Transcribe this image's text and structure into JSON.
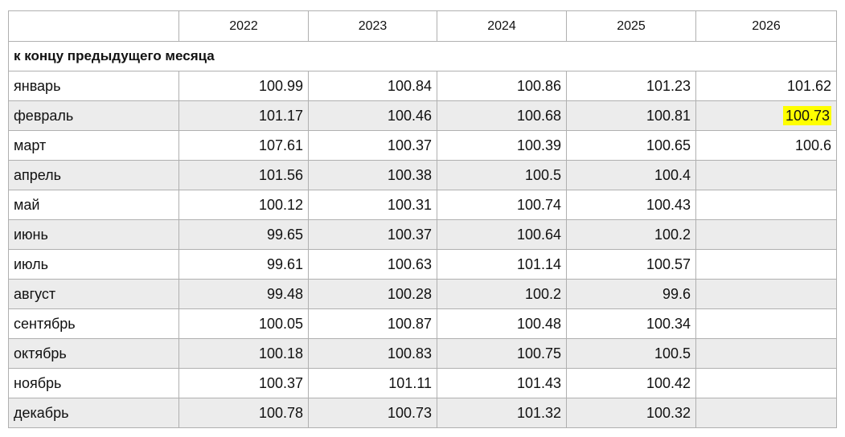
{
  "table": {
    "columns": [
      "2022",
      "2023",
      "2024",
      "2025",
      "2026"
    ],
    "section": "к концу предыдущего месяца",
    "rows": [
      {
        "label": "январь",
        "values": [
          "100.99",
          "100.84",
          "100.86",
          "101.23",
          "101.62"
        ]
      },
      {
        "label": "февраль",
        "values": [
          "101.17",
          "100.46",
          "100.68",
          "100.81",
          "100.73"
        ]
      },
      {
        "label": "март",
        "values": [
          "107.61",
          "100.37",
          "100.39",
          "100.65",
          "100.6"
        ]
      },
      {
        "label": "апрель",
        "values": [
          "101.56",
          "100.38",
          "100.5",
          "100.4"
        ]
      },
      {
        "label": "май",
        "values": [
          "100.12",
          "100.31",
          "100.74",
          "100.43"
        ]
      },
      {
        "label": "июнь",
        "values": [
          "99.65",
          "100.37",
          "100.64",
          "100.2"
        ]
      },
      {
        "label": "июль",
        "values": [
          "99.61",
          "100.63",
          "101.14",
          "100.57"
        ]
      },
      {
        "label": "август",
        "values": [
          "99.48",
          "100.28",
          "100.2",
          "99.6"
        ]
      },
      {
        "label": "сентябрь",
        "values": [
          "100.05",
          "100.87",
          "100.48",
          "100.34"
        ]
      },
      {
        "label": "октябрь",
        "values": [
          "100.18",
          "100.83",
          "100.75",
          "100.5"
        ]
      },
      {
        "label": "ноябрь",
        "values": [
          "100.37",
          "101.11",
          "101.43",
          "100.42"
        ]
      },
      {
        "label": "декабрь",
        "values": [
          "100.78",
          "100.73",
          "101.32",
          "100.32"
        ]
      }
    ]
  }
}
